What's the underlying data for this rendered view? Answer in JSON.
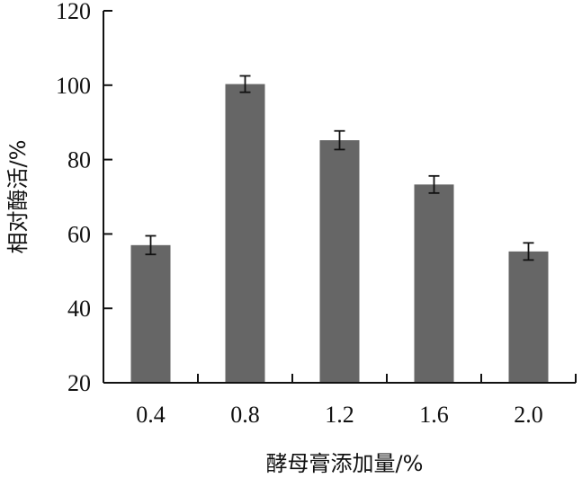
{
  "chart_data": {
    "type": "bar",
    "categories": [
      "0.4",
      "0.8",
      "1.2",
      "1.6",
      "2.0"
    ],
    "values": [
      57,
      100.3,
      85.2,
      73.3,
      55.3
    ],
    "errors": [
      2.5,
      2.2,
      2.5,
      2.3,
      2.3
    ],
    "xlabel": "酵母膏添加量/%",
    "ylabel": "相对酶活/%",
    "ylim": [
      20,
      120
    ],
    "yticks": [
      20,
      40,
      60,
      80,
      100,
      120
    ],
    "grid": false,
    "bar_color": "#666666",
    "axis_color": "#111111"
  }
}
